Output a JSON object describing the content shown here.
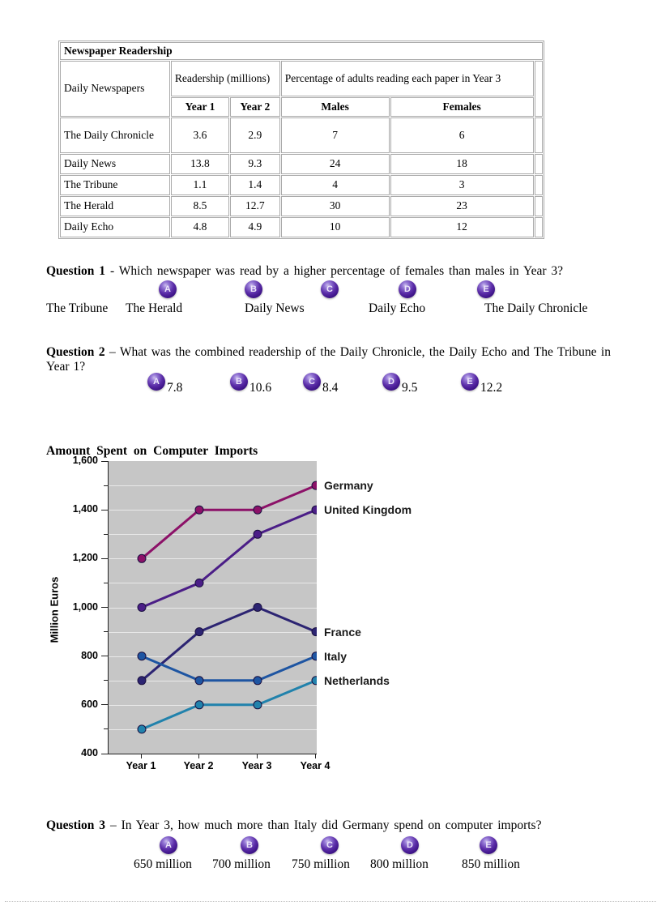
{
  "table": {
    "title": "Newspaper Readership",
    "header": {
      "col1": "Daily Newspapers",
      "group1": "Readership (millions)",
      "group2": "Percentage of adults reading each paper in Year 3",
      "sub": [
        "Year 1",
        "Year 2",
        "Males",
        "Females"
      ]
    },
    "rows": [
      {
        "name": "The Daily Chronicle",
        "year1": "3.6",
        "year2": "2.9",
        "males": "7",
        "females": "6"
      },
      {
        "name": "Daily News",
        "year1": "13.8",
        "year2": "9.3",
        "males": "24",
        "females": "18"
      },
      {
        "name": "The Tribune",
        "year1": "1.1",
        "year2": "1.4",
        "males": "4",
        "females": "3"
      },
      {
        "name": "The Herald",
        "year1": "8.5",
        "year2": "12.7",
        "males": "30",
        "females": "23"
      },
      {
        "name": "Daily Echo",
        "year1": "4.8",
        "year2": "4.9",
        "males": "10",
        "females": "12"
      }
    ]
  },
  "questions": [
    {
      "label": "Question 1",
      "sep": " - ",
      "text": "Which newspaper was read by a higher percentage of females than males in Year 3?",
      "letters": [
        "A",
        "B",
        "C",
        "D",
        "E"
      ],
      "answers": [
        "The Tribune",
        "The Herald",
        "Daily News",
        "Daily Echo",
        "The Daily Chronicle"
      ]
    },
    {
      "label": "Question 2",
      "sep": " – ",
      "text": "What was the combined readership of the Daily Chronicle, the Daily Echo and The Tribune in Year 1?",
      "letters": [
        "A",
        "B",
        "C",
        "D",
        "E"
      ],
      "answers": [
        "7.8",
        "10.6",
        "8.4",
        "9.5",
        "12.2"
      ]
    },
    {
      "label": "Question 3",
      "sep": " – ",
      "text": "In Year 3, how much more than Italy did Germany spend on computer imports?",
      "letters": [
        "A",
        "B",
        "C",
        "D",
        "E"
      ],
      "answers": [
        "650 million",
        "700 million",
        "750 million",
        "800 million",
        "850 million"
      ]
    }
  ],
  "chart_data": {
    "type": "line",
    "title": "Amount Spent on Computer Imports",
    "ylabel": "Million Euros",
    "xlabel": "",
    "categories": [
      "Year 1",
      "Year 2",
      "Year 3",
      "Year 4"
    ],
    "series": [
      {
        "name": "Germany",
        "color": "#8C1168",
        "values": [
          1200,
          1400,
          1400,
          1500
        ]
      },
      {
        "name": "United Kingdom",
        "color": "#4B1E87",
        "values": [
          1000,
          1100,
          1300,
          1400
        ]
      },
      {
        "name": "France",
        "color": "#2C2472",
        "values": [
          700,
          900,
          1000,
          900
        ]
      },
      {
        "name": "Italy",
        "color": "#1E55A2",
        "values": [
          800,
          700,
          700,
          800
        ]
      },
      {
        "name": "Netherlands",
        "color": "#2182AC",
        "values": [
          500,
          600,
          600,
          700
        ]
      }
    ],
    "ylim": [
      400,
      1600
    ],
    "ytick_step": 200,
    "minor_tick_step": 100,
    "ytick_labels": [
      "1,600",
      "1,400",
      "1,200",
      "1,000",
      "800",
      "600",
      "400"
    ],
    "grid": true,
    "legend_position": "right-of-plot",
    "plot_bg": "#c6c6c6"
  }
}
